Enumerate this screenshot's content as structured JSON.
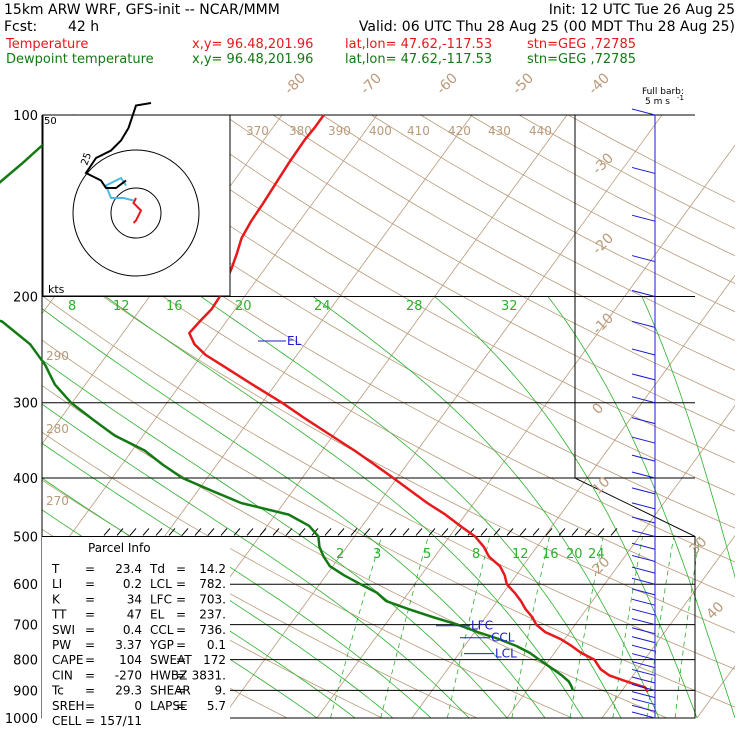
{
  "header": {
    "model": "15km ARW WRF, GFS-init  -- NCAR/MMM",
    "init": "Init: 12 UTC Tue 26 Aug 25",
    "fcst_label": "Fcst:",
    "fcst_value": "42 h",
    "valid": "Valid: 06 UTC Thu 28 Aug 25 (00 MDT Thu 28 Aug 25)",
    "temp_line": {
      "name": "Temperature",
      "xy": "x,y= 96.48,201.96",
      "latlon": "lat,lon= 47.62,-117.53",
      "stn": "stn=GEG ,72785"
    },
    "dew_line": {
      "name": "Dewpoint temperature",
      "xy": "x,y= 96.48,201.96",
      "latlon": "lat,lon= 47.62,-117.53",
      "stn": "stn=GEG ,72785"
    }
  },
  "wind_legend": {
    "line1": "Full barb:",
    "line2": "5 m s",
    "sup": "-1"
  },
  "hodograph": {
    "kts_label": "kts",
    "ring_labels": [
      "25",
      "50"
    ]
  },
  "parcel": {
    "title": "Parcel Info",
    "rows": [
      [
        "T",
        "=",
        "23.4",
        "Td",
        "=",
        "14.2"
      ],
      [
        "LI",
        "=",
        "0.2",
        "LCL",
        "=",
        "782."
      ],
      [
        "K",
        "=",
        "34",
        "LFC",
        "=",
        "703."
      ],
      [
        "TT",
        "=",
        "47",
        "EL",
        "=",
        "237."
      ],
      [
        "SWI",
        "=",
        "0.4",
        "CCL",
        "=",
        "736."
      ],
      [
        "PW",
        "=",
        "3.37",
        "YGP",
        "=",
        "0.1"
      ],
      [
        "CAPE",
        "=",
        "104",
        "SWEAT",
        "=",
        "172"
      ],
      [
        "CIN",
        "=",
        "-270",
        "HWBZ",
        "=",
        "3831."
      ],
      [
        "Tc",
        "=",
        "29.3",
        "SHEAR",
        "=",
        "9."
      ],
      [
        "SREH",
        "=",
        "0",
        "LAPSE",
        "=",
        "5.7"
      ],
      [
        "CELL",
        "=",
        "157/11",
        "",
        "",
        ""
      ]
    ]
  },
  "colors": {
    "temperature": "#e8191a",
    "dewpoint": "#137a13",
    "levels": "#1b1bd0",
    "isotherms": "#b99a7a",
    "mixing": "#2db02d",
    "isobars": "#000000"
  },
  "chart_data": {
    "type": "line",
    "diagram": "skew-T log-p sounding",
    "y_axis": {
      "scale": "log",
      "range_hPa": [
        1000,
        100
      ]
    },
    "pressure_labels": [
      "100",
      "200",
      "300",
      "400",
      "500",
      "600",
      "700",
      "800",
      "900",
      "1000"
    ],
    "isotherm_labels": [
      "-80",
      "-70",
      "-60",
      "-50",
      "-40",
      "-30",
      "-20",
      "-10",
      "0",
      "10",
      "20",
      "30",
      "40"
    ],
    "theta_labels": [
      "370",
      "380",
      "390",
      "400",
      "410",
      "420",
      "430",
      "440",
      "290",
      "280",
      "270"
    ],
    "thetae_labels": [
      "8",
      "12",
      "16",
      "20",
      "24",
      "28",
      "32"
    ],
    "mixing_ratio_labels": [
      "2",
      "3",
      "5",
      "8",
      "12",
      "16",
      "20",
      "24"
    ],
    "level_markers": [
      "EL",
      "LFC",
      "CCL",
      "LCL"
    ],
    "temperature": {
      "p": [
        905,
        890,
        870,
        850,
        830,
        800,
        780,
        760,
        740,
        720,
        700,
        680,
        660,
        640,
        620,
        600,
        580,
        560,
        540,
        520,
        500,
        480,
        460,
        440,
        420,
        400,
        380,
        360,
        340,
        320,
        300,
        280,
        260,
        250,
        240,
        230,
        220,
        210,
        200,
        190,
        180,
        170,
        160,
        150,
        140,
        130,
        120,
        110,
        105,
        100
      ],
      "t": [
        22.8,
        22.2,
        19.8,
        17.5,
        16.1,
        14.7,
        12.8,
        11.3,
        9.6,
        7.4,
        5.9,
        4.9,
        3.6,
        2.5,
        1.2,
        -0.3,
        -1.2,
        -2.4,
        -4.3,
        -5.6,
        -7.3,
        -9.7,
        -12.1,
        -14.9,
        -17.6,
        -20.4,
        -23.4,
        -26.6,
        -30.2,
        -34.0,
        -37.9,
        -42.4,
        -47.1,
        -49.6,
        -51.6,
        -53.0,
        -52.8,
        -52.5,
        -52.6,
        -53.1,
        -53.5,
        -54.1,
        -54.8,
        -55.1,
        -55.2,
        -55.4,
        -55.6,
        -55.7,
        -55.6,
        -55.6
      ]
    },
    "dewpoint": {
      "p": [
        900,
        890,
        870,
        850,
        830,
        800,
        780,
        760,
        740,
        720,
        700,
        680,
        660,
        640,
        620,
        600,
        580,
        560,
        540,
        520,
        500,
        480,
        460,
        440,
        420,
        400,
        380,
        360,
        340,
        320,
        300,
        280,
        260,
        240,
        220,
        210,
        200,
        190,
        180,
        170,
        160,
        150,
        140,
        130,
        120,
        110,
        100
      ],
      "td": [
        14.8,
        14.5,
        13.7,
        12.5,
        11.1,
        8.9,
        7.4,
        5.5,
        3.1,
        0.3,
        -2.4,
        -5.6,
        -8.7,
        -11.7,
        -13.3,
        -15.7,
        -18.1,
        -20.3,
        -21.7,
        -22.9,
        -23.8,
        -25.6,
        -28.6,
        -34.5,
        -38.5,
        -42.6,
        -45.7,
        -48.7,
        -53.0,
        -56.5,
        -60.1,
        -63.2,
        -65.7,
        -68.9,
        -73.6,
        -79.1,
        -83.9,
        -85.8,
        -86.5,
        -87.0,
        -87.0,
        -86.4,
        -85.5,
        -84.6,
        -83.6,
        -82.7,
        -81.8
      ]
    },
    "hodograph_uv_kts": {
      "red": [
        [
          -1,
          -4
        ],
        [
          0,
          -3
        ],
        [
          2,
          1
        ],
        [
          -1,
          4
        ],
        [
          0,
          6
        ]
      ],
      "cyan": [
        [
          -1,
          5
        ],
        [
          -5,
          6
        ],
        [
          -10,
          6
        ],
        [
          -12,
          11
        ],
        [
          -6,
          14
        ],
        [
          -4,
          11
        ]
      ],
      "black": [
        [
          -4,
          13
        ],
        [
          -8,
          10
        ],
        [
          -12,
          10
        ],
        [
          -14,
          13
        ],
        [
          -20,
          16
        ],
        [
          -16,
          22
        ],
        [
          -10,
          25
        ],
        [
          -6,
          29
        ],
        [
          -3,
          34
        ],
        [
          0,
          43
        ],
        [
          6,
          44
        ]
      ]
    }
  }
}
